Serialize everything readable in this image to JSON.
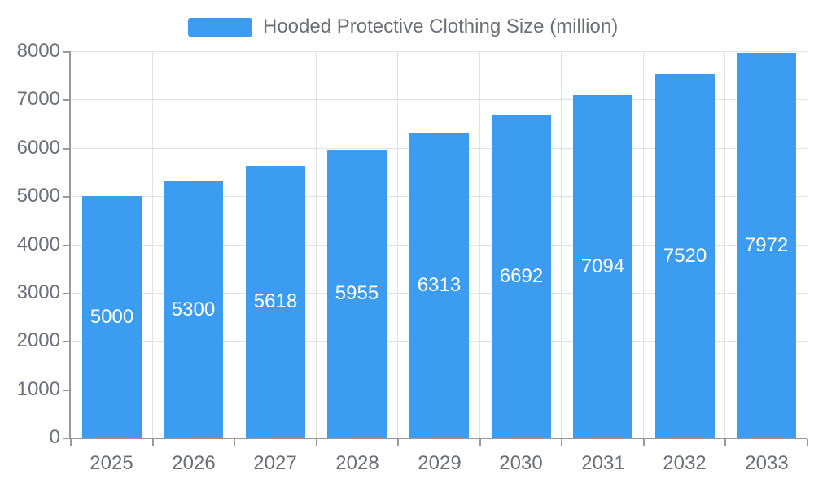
{
  "chart_data": {
    "type": "bar",
    "title": "",
    "xlabel": "",
    "ylabel": "",
    "categories": [
      "2025",
      "2026",
      "2027",
      "2028",
      "2029",
      "2030",
      "2031",
      "2032",
      "2033"
    ],
    "values": [
      5000,
      5300,
      5618,
      5955,
      6313,
      6692,
      7094,
      7520,
      7972
    ],
    "series_name": "Hooded Protective Clothing Size (million)",
    "ylim": [
      0,
      8000
    ],
    "yticks": [
      0,
      1000,
      2000,
      3000,
      4000,
      5000,
      6000,
      7000,
      8000
    ],
    "grid": true,
    "legend": {
      "position": "top",
      "entries": [
        "Hooded Protective Clothing Size (million)"
      ]
    },
    "bar_value_labels": {
      "position": "inside-center",
      "values": [
        "5000",
        "5300",
        "5618",
        "5955",
        "6313",
        "6692",
        "7094",
        "7520",
        "7972"
      ]
    }
  },
  "colors": {
    "bar": "#3B9CF0",
    "grid": "#E2E2E2",
    "axis": "#999999",
    "axis_label": "#6E7079",
    "legend_text": "#6E7079",
    "bar_label": "#FFFFFF",
    "background": "#FFFFFF"
  }
}
